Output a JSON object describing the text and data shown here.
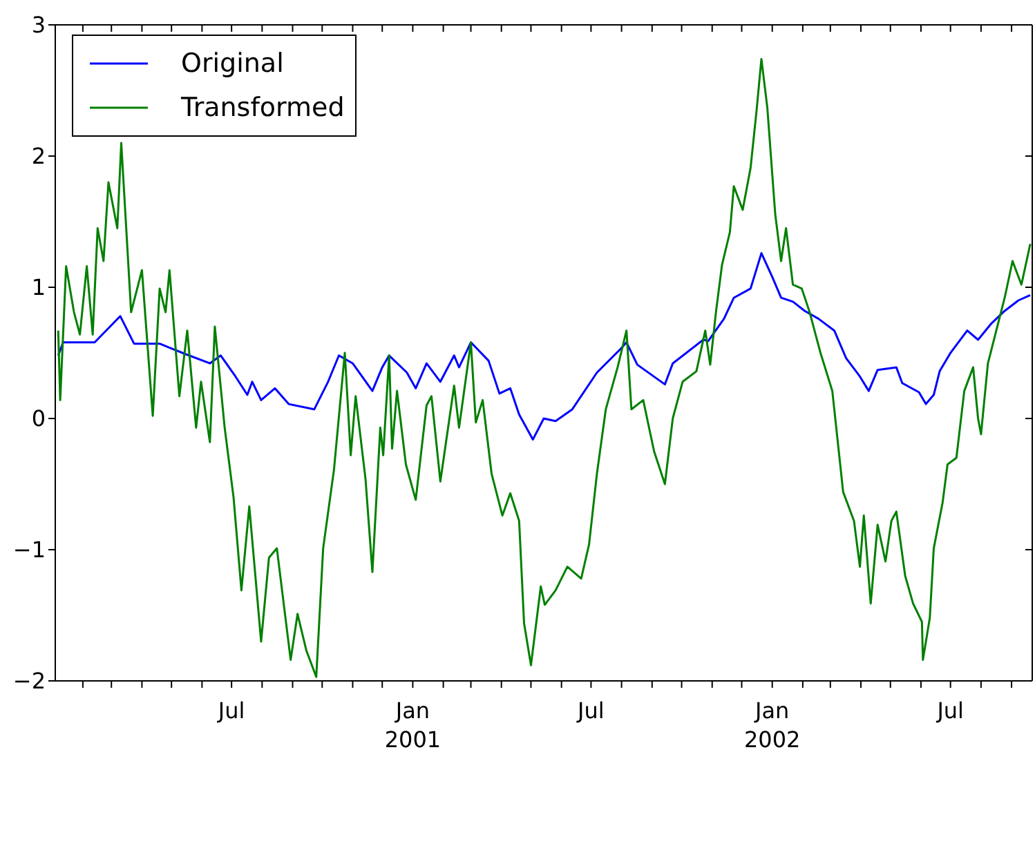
{
  "chart_data": {
    "type": "line",
    "legend": "top left",
    "marker": "none",
    "line_style": "solid",
    "grid": false,
    "xlim": [
      "2000-01-04",
      "2002-09-22"
    ],
    "ylim": [
      -2,
      3
    ],
    "yticks": [
      -2,
      -1,
      0,
      1,
      2,
      3
    ],
    "xticks": [
      {
        "value": "2000-02",
        "label": null
      },
      {
        "value": "2000-03",
        "label": null
      },
      {
        "value": "2000-04",
        "label": null
      },
      {
        "value": "2000-05",
        "label": null
      },
      {
        "value": "2000-06",
        "label": null
      },
      {
        "value": "2000-07",
        "label": "Jul"
      },
      {
        "value": "2000-08",
        "label": null
      },
      {
        "value": "2000-09",
        "label": null
      },
      {
        "value": "2000-10",
        "label": null
      },
      {
        "value": "2000-11",
        "label": null
      },
      {
        "value": "2000-12",
        "label": null
      },
      {
        "value": "2001-01",
        "label": "Jan\n2001"
      },
      {
        "value": "2001-02",
        "label": null
      },
      {
        "value": "2001-03",
        "label": null
      },
      {
        "value": "2001-04",
        "label": null
      },
      {
        "value": "2001-05",
        "label": null
      },
      {
        "value": "2001-06",
        "label": null
      },
      {
        "value": "2001-07",
        "label": "Jul"
      },
      {
        "value": "2001-08",
        "label": null
      },
      {
        "value": "2001-09",
        "label": null
      },
      {
        "value": "2001-10",
        "label": null
      },
      {
        "value": "2001-11",
        "label": null
      },
      {
        "value": "2001-12",
        "label": null
      },
      {
        "value": "2002-01",
        "label": "Jan\n2002"
      },
      {
        "value": "2002-02",
        "label": null
      },
      {
        "value": "2002-03",
        "label": null
      },
      {
        "value": "2002-04",
        "label": null
      },
      {
        "value": "2002-05",
        "label": null
      },
      {
        "value": "2002-06",
        "label": null
      },
      {
        "value": "2002-07",
        "label": "Jul"
      },
      {
        "value": "2002-08",
        "label": null
      },
      {
        "value": "2002-09",
        "label": null
      }
    ],
    "series": [
      {
        "name": "Original",
        "color": "#0000ff",
        "x": [
          "2000-01-07",
          "2000-01-12",
          "2000-02-13",
          "2000-03-10",
          "2000-03-24",
          "2000-04-19",
          "2000-05-12",
          "2000-06-09",
          "2000-06-20",
          "2000-07-05",
          "2000-07-17",
          "2000-07-22",
          "2000-07-31",
          "2000-08-14",
          "2000-08-28",
          "2000-09-23",
          "2000-10-07",
          "2000-10-18",
          "2000-11-01",
          "2000-11-21",
          "2000-12-01",
          "2000-12-08",
          "2000-12-26",
          "2001-01-04",
          "2001-01-15",
          "2001-01-29",
          "2001-02-12",
          "2001-02-17",
          "2001-03-01",
          "2001-03-19",
          "2001-03-30",
          "2001-04-10",
          "2001-04-19",
          "2001-05-03",
          "2001-05-14",
          "2001-05-26",
          "2001-06-12",
          "2001-07-07",
          "2001-07-31",
          "2001-08-06",
          "2001-08-17",
          "2001-09-14",
          "2001-09-22",
          "2001-10-23",
          "2001-10-28",
          "2001-11-13",
          "2001-11-23",
          "2001-12-10",
          "2001-12-21",
          "2002-01-01",
          "2002-01-10",
          "2002-01-22",
          "2002-02-03",
          "2002-02-17",
          "2002-03-05",
          "2002-03-17",
          "2002-03-31",
          "2002-04-09",
          "2002-04-18",
          "2002-05-07",
          "2002-05-13",
          "2002-05-30",
          "2002-06-06",
          "2002-06-14",
          "2002-06-20",
          "2002-07-01",
          "2002-07-18",
          "2002-07-29",
          "2002-08-11",
          "2002-08-25",
          "2002-09-08",
          "2002-09-20"
        ],
        "values": [
          0.48,
          0.58,
          0.58,
          0.78,
          0.57,
          0.57,
          0.5,
          0.42,
          0.48,
          0.32,
          0.18,
          0.28,
          0.14,
          0.23,
          0.11,
          0.07,
          0.28,
          0.48,
          0.42,
          0.21,
          0.39,
          0.48,
          0.35,
          0.23,
          0.42,
          0.28,
          0.48,
          0.39,
          0.58,
          0.44,
          0.19,
          0.23,
          0.03,
          -0.16,
          0.0,
          -0.02,
          0.07,
          0.35,
          0.53,
          0.58,
          0.41,
          0.26,
          0.42,
          0.6,
          0.59,
          0.76,
          0.92,
          0.99,
          1.26,
          1.08,
          0.92,
          0.89,
          0.82,
          0.76,
          0.67,
          0.46,
          0.32,
          0.21,
          0.37,
          0.39,
          0.27,
          0.2,
          0.11,
          0.18,
          0.36,
          0.5,
          0.67,
          0.6,
          0.72,
          0.82,
          0.9,
          0.94
        ]
      },
      {
        "name": "Transformed",
        "color": "#008000",
        "x": [
          "2000-01-07",
          "2000-01-09",
          "2000-01-15",
          "2000-01-23",
          "2000-01-29",
          "2000-02-05",
          "2000-02-11",
          "2000-02-16",
          "2000-02-22",
          "2000-02-27",
          "2000-03-07",
          "2000-03-11",
          "2000-03-21",
          "2000-04-01",
          "2000-04-12",
          "2000-04-19",
          "2000-04-25",
          "2000-04-29",
          "2000-05-09",
          "2000-05-17",
          "2000-05-26",
          "2000-05-31",
          "2000-06-09",
          "2000-06-14",
          "2000-06-24",
          "2000-07-03",
          "2000-07-11",
          "2000-07-19",
          "2000-07-31",
          "2000-08-08",
          "2000-08-16",
          "2000-08-30",
          "2000-09-06",
          "2000-09-15",
          "2000-09-25",
          "2000-10-02",
          "2000-10-13",
          "2000-10-24",
          "2000-10-30",
          "2000-11-04",
          "2000-11-14",
          "2000-11-21",
          "2000-11-29",
          "2000-12-02",
          "2000-12-08",
          "2000-12-11",
          "2000-12-16",
          "2000-12-25",
          "2001-01-04",
          "2001-01-15",
          "2001-01-20",
          "2001-01-29",
          "2001-02-12",
          "2001-02-17",
          "2001-03-01",
          "2001-03-06",
          "2001-03-13",
          "2001-03-22",
          "2001-04-02",
          "2001-04-10",
          "2001-04-19",
          "2001-04-24",
          "2001-05-01",
          "2001-05-11",
          "2001-05-15",
          "2001-05-26",
          "2001-06-07",
          "2001-06-21",
          "2001-06-29",
          "2001-07-07",
          "2001-07-16",
          "2001-07-28",
          "2001-08-06",
          "2001-08-11",
          "2001-08-23",
          "2001-09-03",
          "2001-09-14",
          "2001-09-22",
          "2001-10-02",
          "2001-10-16",
          "2001-10-25",
          "2001-10-30",
          "2001-11-05",
          "2001-11-11",
          "2001-11-19",
          "2001-11-23",
          "2001-12-02",
          "2001-12-10",
          "2001-12-16",
          "2001-12-21",
          "2001-12-27",
          "2002-01-04",
          "2002-01-10",
          "2002-01-15",
          "2002-01-22",
          "2002-01-31",
          "2002-02-08",
          "2002-02-14",
          "2002-02-19",
          "2002-03-03",
          "2002-03-14",
          "2002-03-25",
          "2002-03-31",
          "2002-04-04",
          "2002-04-11",
          "2002-04-18",
          "2002-04-26",
          "2002-05-02",
          "2002-05-07",
          "2002-05-16",
          "2002-05-24",
          "2002-06-02",
          "2002-06-03",
          "2002-06-10",
          "2002-06-14",
          "2002-06-23",
          "2002-06-28",
          "2002-07-07",
          "2002-07-15",
          "2002-07-24",
          "2002-07-29",
          "2002-08-01",
          "2002-08-08",
          "2002-08-25",
          "2002-09-02",
          "2002-09-11",
          "2002-09-20"
        ],
        "values": [
          0.67,
          0.14,
          1.16,
          0.81,
          0.64,
          1.16,
          0.64,
          1.45,
          1.2,
          1.8,
          1.45,
          2.1,
          0.81,
          1.13,
          0.02,
          0.99,
          0.81,
          1.13,
          0.17,
          0.67,
          -0.07,
          0.28,
          -0.18,
          0.7,
          -0.07,
          -0.6,
          -1.31,
          -0.67,
          -1.7,
          -1.06,
          -0.99,
          -1.84,
          -1.49,
          -1.77,
          -1.97,
          -0.99,
          -0.39,
          0.5,
          -0.28,
          0.17,
          -0.46,
          -1.17,
          -0.07,
          -0.28,
          0.48,
          -0.23,
          0.21,
          -0.35,
          -0.62,
          0.1,
          0.17,
          -0.48,
          0.25,
          -0.07,
          0.58,
          -0.03,
          0.14,
          -0.42,
          -0.74,
          -0.57,
          -0.78,
          -1.56,
          -1.88,
          -1.28,
          -1.42,
          -1.31,
          -1.13,
          -1.22,
          -0.96,
          -0.42,
          0.07,
          0.39,
          0.67,
          0.07,
          0.14,
          -0.25,
          -0.5,
          0.0,
          0.28,
          0.36,
          0.67,
          0.41,
          0.82,
          1.17,
          1.42,
          1.77,
          1.59,
          1.91,
          2.34,
          2.74,
          2.37,
          1.56,
          1.2,
          1.45,
          1.02,
          0.99,
          0.81,
          0.64,
          0.5,
          0.21,
          -0.56,
          -0.78,
          -1.13,
          -0.74,
          -1.41,
          -0.81,
          -1.09,
          -0.78,
          -0.71,
          -1.2,
          -1.41,
          -1.55,
          -1.84,
          -1.52,
          -0.99,
          -0.64,
          -0.35,
          -0.3,
          0.21,
          0.39,
          0.0,
          -0.12,
          0.42,
          0.92,
          1.2,
          1.02,
          1.33
        ]
      }
    ]
  }
}
